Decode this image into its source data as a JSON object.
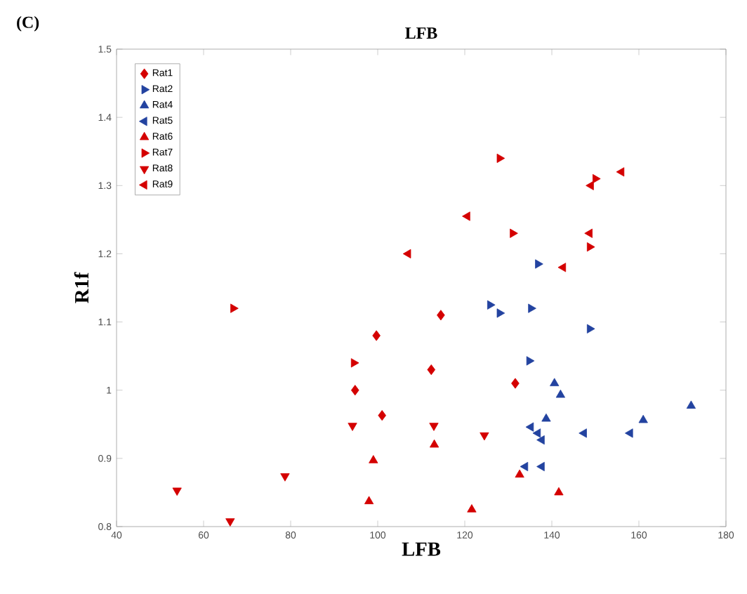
{
  "chart_data": {
    "type": "scatter",
    "title": "LFB",
    "xlabel": "LFB",
    "ylabel": "R1f",
    "annotations": [
      "(C)"
    ],
    "xlim": [
      40,
      180
    ],
    "ylim": [
      0.8,
      1.5
    ],
    "xticks": [
      40,
      60,
      80,
      100,
      120,
      140,
      160,
      180
    ],
    "yticks": [
      0.8,
      0.9,
      1,
      1.1,
      1.2,
      1.3,
      1.4,
      1.5
    ],
    "grid": false,
    "legend": "top left",
    "series": [
      {
        "name": "Rat1",
        "color": "#d40000",
        "marker": "diamond",
        "x": [
          99.7,
          112.3,
          114.5,
          131.6,
          94.8,
          101
        ],
        "values": [
          1.08,
          1.03,
          1.11,
          1.01,
          1.0,
          0.963
        ]
      },
      {
        "name": "Rat2",
        "color": "#2343a0",
        "marker": "triangle-right",
        "x": [
          136.8,
          125.8,
          128,
          135.2,
          148.7,
          134.8
        ],
        "values": [
          1.185,
          1.125,
          1.113,
          1.12,
          1.09,
          1.043
        ]
      },
      {
        "name": "Rat4",
        "color": "#2343a0",
        "marker": "triangle",
        "x": [
          140.6,
          142,
          172,
          138.7,
          161
        ],
        "values": [
          1.01,
          0.993,
          0.977,
          0.958,
          0.956
        ]
      },
      {
        "name": "Rat5",
        "color": "#2343a0",
        "marker": "triangle-left",
        "x": [
          135.2,
          136.8,
          137.7,
          147.4,
          158,
          133.9,
          137.7
        ],
        "values": [
          0.946,
          0.937,
          0.927,
          0.937,
          0.937,
          0.888,
          0.888
        ]
      },
      {
        "name": "Rat6",
        "color": "#d40000",
        "marker": "triangle",
        "x": [
          113,
          99,
          132.6,
          141.6,
          98,
          121.6
        ],
        "values": [
          0.92,
          0.897,
          0.876,
          0.85,
          0.837,
          0.825
        ]
      },
      {
        "name": "Rat7",
        "color": "#d40000",
        "marker": "triangle-right",
        "x": [
          128,
          150,
          131,
          148.7,
          94.5,
          66.8
        ],
        "values": [
          1.34,
          1.31,
          1.23,
          1.21,
          1.04,
          1.12
        ]
      },
      {
        "name": "Rat8",
        "color": "#d40000",
        "marker": "triangle-down",
        "x": [
          94.2,
          112.9,
          124.5,
          53.9,
          78.7,
          66.1
        ],
        "values": [
          0.948,
          0.948,
          0.934,
          0.853,
          0.874,
          0.808
        ]
      },
      {
        "name": "Rat9",
        "color": "#d40000",
        "marker": "triangle-left",
        "x": [
          149,
          156,
          120.6,
          148.7,
          107,
          142.6
        ],
        "values": [
          1.3,
          1.32,
          1.255,
          1.23,
          1.2,
          1.18
        ]
      }
    ]
  }
}
